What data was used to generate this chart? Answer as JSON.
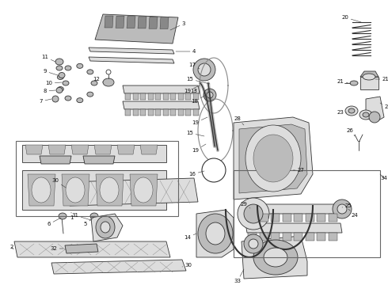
{
  "bg_color": "#ffffff",
  "fg_color": "#111111",
  "fig_width": 4.9,
  "fig_height": 3.6,
  "dpi": 100,
  "lw": 0.6,
  "gc": "#333333",
  "label_fs": 5.0
}
